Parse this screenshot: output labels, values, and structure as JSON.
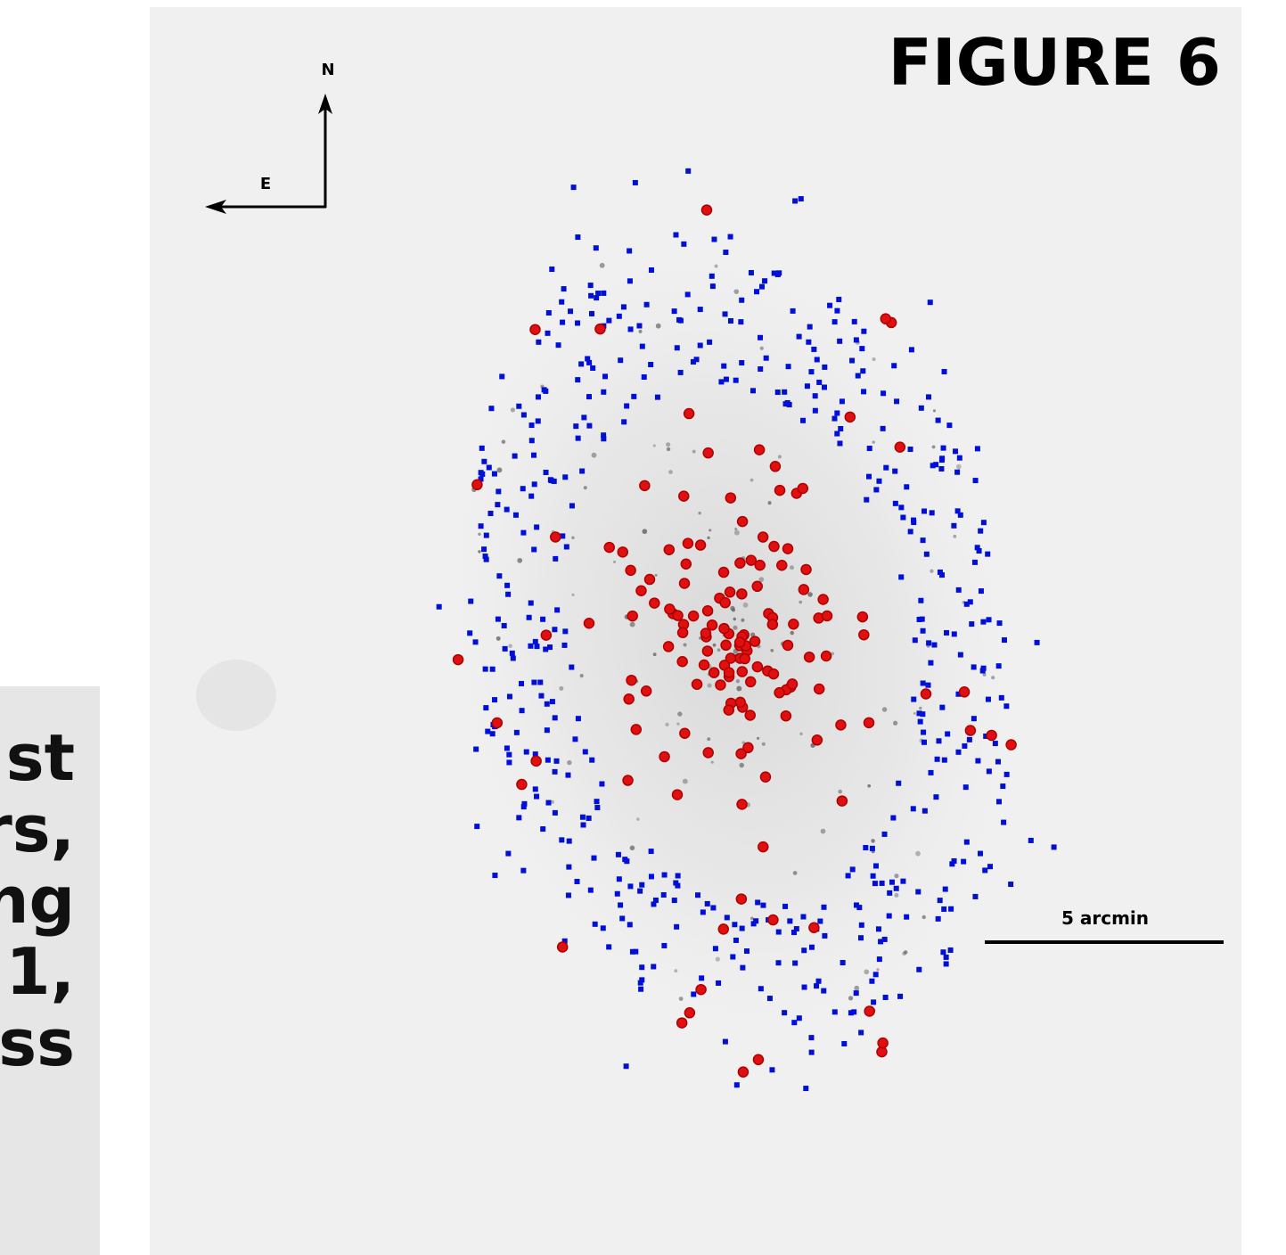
{
  "figure": {
    "title": "FIGURE 6",
    "compass": {
      "north": "N",
      "east": "E"
    },
    "scale_bar": "5 arcmin"
  },
  "side_text": {
    "lines": [
      "st",
      "rs,",
      "ng",
      "1,",
      "ss"
    ]
  }
}
